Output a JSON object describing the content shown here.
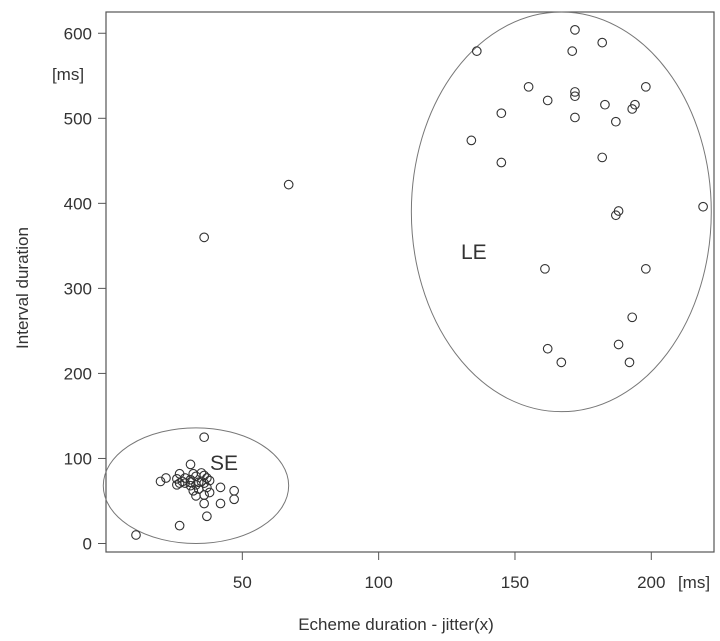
{
  "chart_data": {
    "type": "scatter",
    "xlabel": "Echeme duration - jitter(x)",
    "ylabel": "Interval duration",
    "x_unit": "[ms]",
    "y_unit": "[ms]",
    "xlim": [
      0,
      223
    ],
    "ylim": [
      -10,
      625
    ],
    "x_ticks": [
      50,
      100,
      150,
      200
    ],
    "y_ticks": [
      0,
      100,
      200,
      300,
      400,
      500,
      600
    ],
    "grid": false,
    "regions": [
      {
        "label": "SE",
        "cx": 33,
        "cy": 68,
        "rx": 34,
        "ry": 68
      },
      {
        "label": "LE",
        "cx": 167,
        "cy": 390,
        "rx": 55,
        "ry": 235
      }
    ],
    "points": [
      {
        "x": 11,
        "y": 10
      },
      {
        "x": 27,
        "y": 21
      },
      {
        "x": 37,
        "y": 32
      },
      {
        "x": 42,
        "y": 47
      },
      {
        "x": 36,
        "y": 47
      },
      {
        "x": 47,
        "y": 52
      },
      {
        "x": 33,
        "y": 56
      },
      {
        "x": 36,
        "y": 57
      },
      {
        "x": 38,
        "y": 60
      },
      {
        "x": 47,
        "y": 62
      },
      {
        "x": 32,
        "y": 62
      },
      {
        "x": 34,
        "y": 64
      },
      {
        "x": 42,
        "y": 66
      },
      {
        "x": 37,
        "y": 66
      },
      {
        "x": 31,
        "y": 68
      },
      {
        "x": 33,
        "y": 69
      },
      {
        "x": 26,
        "y": 69
      },
      {
        "x": 27,
        "y": 71
      },
      {
        "x": 29,
        "y": 71
      },
      {
        "x": 36,
        "y": 71
      },
      {
        "x": 31,
        "y": 72
      },
      {
        "x": 34,
        "y": 72
      },
      {
        "x": 20,
        "y": 73
      },
      {
        "x": 28,
        "y": 73
      },
      {
        "x": 35,
        "y": 73
      },
      {
        "x": 38,
        "y": 74
      },
      {
        "x": 31,
        "y": 75
      },
      {
        "x": 26,
        "y": 76
      },
      {
        "x": 22,
        "y": 77
      },
      {
        "x": 29,
        "y": 77
      },
      {
        "x": 37,
        "y": 77
      },
      {
        "x": 33,
        "y": 79
      },
      {
        "x": 36,
        "y": 80
      },
      {
        "x": 27,
        "y": 82
      },
      {
        "x": 32,
        "y": 82
      },
      {
        "x": 35,
        "y": 83
      },
      {
        "x": 31,
        "y": 93
      },
      {
        "x": 36,
        "y": 125
      },
      {
        "x": 36,
        "y": 360
      },
      {
        "x": 67,
        "y": 422
      },
      {
        "x": 172,
        "y": 604
      },
      {
        "x": 182,
        "y": 589
      },
      {
        "x": 136,
        "y": 579
      },
      {
        "x": 171,
        "y": 579
      },
      {
        "x": 155,
        "y": 537
      },
      {
        "x": 198,
        "y": 537
      },
      {
        "x": 172,
        "y": 531
      },
      {
        "x": 172,
        "y": 526
      },
      {
        "x": 162,
        "y": 521
      },
      {
        "x": 183,
        "y": 516
      },
      {
        "x": 194,
        "y": 516
      },
      {
        "x": 193,
        "y": 511
      },
      {
        "x": 145,
        "y": 506
      },
      {
        "x": 172,
        "y": 501
      },
      {
        "x": 187,
        "y": 496
      },
      {
        "x": 134,
        "y": 474
      },
      {
        "x": 182,
        "y": 454
      },
      {
        "x": 145,
        "y": 448
      },
      {
        "x": 219,
        "y": 396
      },
      {
        "x": 188,
        "y": 391
      },
      {
        "x": 187,
        "y": 386
      },
      {
        "x": 161,
        "y": 323
      },
      {
        "x": 198,
        "y": 323
      },
      {
        "x": 193,
        "y": 266
      },
      {
        "x": 188,
        "y": 234
      },
      {
        "x": 162,
        "y": 229
      },
      {
        "x": 167,
        "y": 213
      },
      {
        "x": 192,
        "y": 213
      }
    ]
  }
}
